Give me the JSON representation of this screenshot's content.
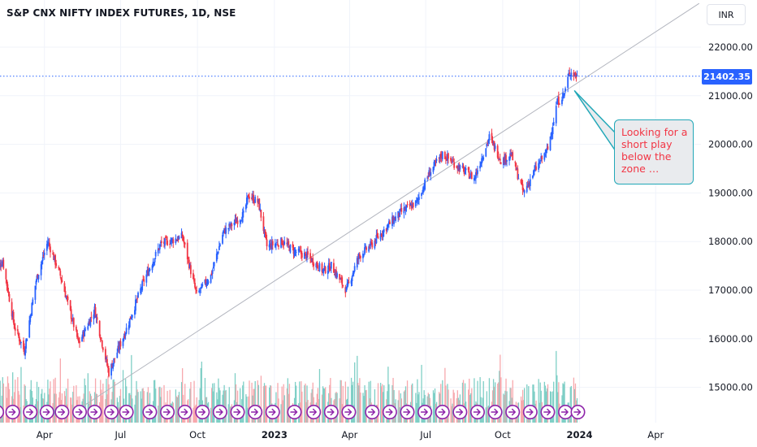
{
  "header": {
    "title": "S&P CNX NIFTY INDEX FUTURES, 1D, NSE",
    "currency_button": "INR"
  },
  "price_axis": {
    "ticks": [
      "22000.00",
      "21000.00",
      "20000.00",
      "19000.00",
      "18000.00",
      "17000.00",
      "16000.00",
      "15000.00"
    ],
    "last_price_label": "21402.35"
  },
  "time_axis": {
    "ticks": [
      "Apr",
      "Jul",
      "Oct",
      "2023",
      "Apr",
      "Jul",
      "Oct",
      "2024",
      "Apr"
    ]
  },
  "annotation": {
    "text": "Looking for a short play below the zone …"
  },
  "colors": {
    "up": "#2962ff",
    "down": "#f23645",
    "volume_up": "#7fcfc6",
    "volume_down": "#f7a8ad",
    "trendline": "#b2b5be",
    "last_price_line": "#2962ff",
    "callout_border": "#22a8b8",
    "callout_text": "#f23645",
    "event_marker": "#8e24aa"
  },
  "event_marker_icon": "arrow-right-circle-icon",
  "chart_data": {
    "type": "candlestick",
    "title": "S&P CNX NIFTY INDEX FUTURES, 1D, NSE",
    "yrange": [
      14300,
      22900
    ],
    "xrange": [
      "2022-02-01",
      "2024-05-31"
    ],
    "last_price": 21402.35,
    "price_path": [
      [
        "2022-02-01",
        17400
      ],
      [
        "2022-02-10",
        17600
      ],
      [
        "2022-02-24",
        16250
      ],
      [
        "2022-03-08",
        15750
      ],
      [
        "2022-03-22",
        17200
      ],
      [
        "2022-04-05",
        18000
      ],
      [
        "2022-04-20",
        17300
      ],
      [
        "2022-05-12",
        15900
      ],
      [
        "2022-05-31",
        16600
      ],
      [
        "2022-06-17",
        15300
      ],
      [
        "2022-07-08",
        16200
      ],
      [
        "2022-07-29",
        17200
      ],
      [
        "2022-08-18",
        17950
      ],
      [
        "2022-09-13",
        18100
      ],
      [
        "2022-09-30",
        16900
      ],
      [
        "2022-10-17",
        17300
      ],
      [
        "2022-11-01",
        18200
      ],
      [
        "2022-11-25",
        18550
      ],
      [
        "2022-12-01",
        18950
      ],
      [
        "2022-12-13",
        18800
      ],
      [
        "2022-12-23",
        17900
      ],
      [
        "2023-01-10",
        18000
      ],
      [
        "2023-01-25",
        17800
      ],
      [
        "2023-02-10",
        17700
      ],
      [
        "2023-02-28",
        17400
      ],
      [
        "2023-03-10",
        17500
      ],
      [
        "2023-03-28",
        17000
      ],
      [
        "2023-04-12",
        17700
      ],
      [
        "2023-04-28",
        17950
      ],
      [
        "2023-05-15",
        18300
      ],
      [
        "2023-06-01",
        18600
      ],
      [
        "2023-06-20",
        18800
      ],
      [
        "2023-07-05",
        19400
      ],
      [
        "2023-07-21",
        19800
      ],
      [
        "2023-08-08",
        19550
      ],
      [
        "2023-08-28",
        19300
      ],
      [
        "2023-09-15",
        20150
      ],
      [
        "2023-09-30",
        19650
      ],
      [
        "2023-10-11",
        19800
      ],
      [
        "2023-10-26",
        19000
      ],
      [
        "2023-11-08",
        19450
      ],
      [
        "2023-11-24",
        19900
      ],
      [
        "2023-12-05",
        20850
      ],
      [
        "2023-12-14",
        21050
      ],
      [
        "2023-12-20",
        21500
      ],
      [
        "2023-12-29",
        21402
      ]
    ],
    "trendline": [
      [
        "2022-05-16",
        14600
      ],
      [
        "2024-05-23",
        22900
      ]
    ],
    "annotation": "Looking for a short play below the zone …"
  }
}
